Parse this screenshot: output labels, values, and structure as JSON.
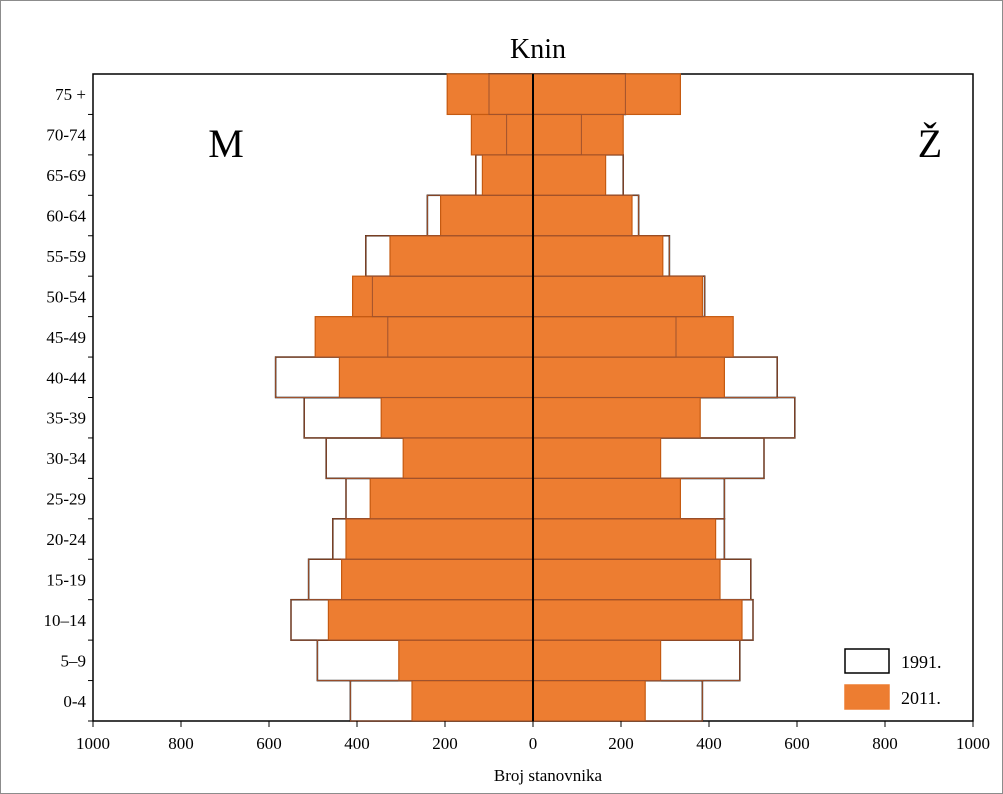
{
  "chart_data": {
    "type": "bar",
    "orientation": "horizontal-pyramid",
    "title": "Knin",
    "xlabel": "Broj stanovnika",
    "xlim": [
      -1000,
      1000
    ],
    "x_ticks": [
      -1000,
      -800,
      -600,
      -400,
      -200,
      0,
      200,
      400,
      600,
      800,
      1000
    ],
    "x_tick_labels": [
      "1000",
      "800",
      "600",
      "400",
      "200",
      "0",
      "200",
      "400",
      "600",
      "800",
      "1000"
    ],
    "side_labels": {
      "left": "M",
      "right": "Ž"
    },
    "categories": [
      "0-4",
      "5–9",
      "10–14",
      "15-19",
      "20-24",
      "25-29",
      "30-34",
      "35-39",
      "40-44",
      "45-49",
      "50-54",
      "55-59",
      "60-64",
      "65-69",
      "70-74",
      "75 +"
    ],
    "series": [
      {
        "name": "1991.",
        "color": "#ffffff",
        "stroke": "#000000",
        "male": [
          415,
          490,
          550,
          510,
          455,
          425,
          470,
          520,
          585,
          330,
          365,
          380,
          240,
          130,
          60,
          100
        ],
        "female": [
          385,
          470,
          500,
          495,
          435,
          435,
          525,
          595,
          555,
          325,
          390,
          310,
          240,
          205,
          110,
          210
        ]
      },
      {
        "name": "2011.",
        "color": "#ed7d31",
        "stroke": "#c55a11",
        "male": [
          275,
          305,
          465,
          435,
          425,
          370,
          295,
          345,
          440,
          495,
          410,
          325,
          210,
          115,
          140,
          195
        ],
        "female": [
          255,
          290,
          475,
          425,
          415,
          335,
          290,
          380,
          435,
          455,
          385,
          295,
          225,
          165,
          205,
          335
        ]
      }
    ],
    "legend_position": "bottom-right"
  }
}
